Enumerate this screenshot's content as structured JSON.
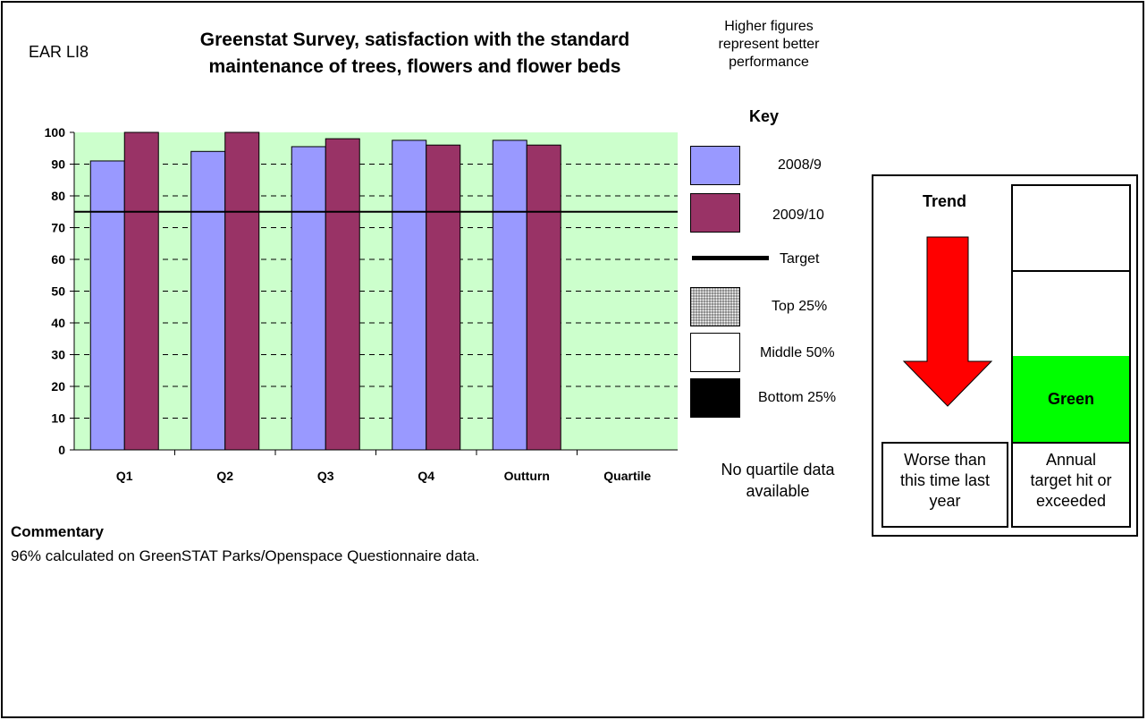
{
  "header": {
    "code": "EAR LI8",
    "title_line1": "Greenstat Survey, satisfaction with the standard",
    "title_line2": "maintenance of trees, flowers and flower beds",
    "note_line1": "Higher figures",
    "note_line2": "represent better",
    "note_line3": "performance"
  },
  "chart_data": {
    "type": "bar",
    "categories": [
      "Q1",
      "Q2",
      "Q3",
      "Q4",
      "Outturn",
      "Quartile"
    ],
    "series": [
      {
        "name": "2008/9",
        "values": [
          91,
          94,
          95.5,
          97.5,
          97.5,
          null
        ],
        "color": "#9999ff"
      },
      {
        "name": "2009/10",
        "values": [
          100,
          100,
          98,
          96,
          96,
          null
        ],
        "color": "#993366"
      }
    ],
    "target": {
      "name": "Target",
      "value": 75
    },
    "ylim": [
      0,
      100
    ],
    "yticks": [
      0,
      10,
      20,
      30,
      40,
      50,
      60,
      70,
      80,
      90,
      100
    ],
    "grid": "dashed horizontal",
    "plot_background": "#ccffcc"
  },
  "key": {
    "heading": "Key",
    "series1": "2008/9",
    "series2": "2009/10",
    "target": "Target",
    "top": "Top 25%",
    "middle": "Middle 50%",
    "bottom": "Bottom 25%"
  },
  "quartile_note": {
    "line1": "No quartile data",
    "line2": "available"
  },
  "commentary": {
    "heading": "Commentary",
    "text": "96% calculated on GreenSTAT Parks/Openspace Questionnaire data."
  },
  "trend": {
    "heading": "Trend",
    "direction": "down",
    "arrow_color": "#ff0000",
    "line1": "Worse than",
    "line2": "this time last",
    "line3": "year"
  },
  "rag": {
    "status": "Green",
    "status_color": "#00ff00",
    "line1": "Annual",
    "line2": "target hit or",
    "line3": "exceeded"
  }
}
